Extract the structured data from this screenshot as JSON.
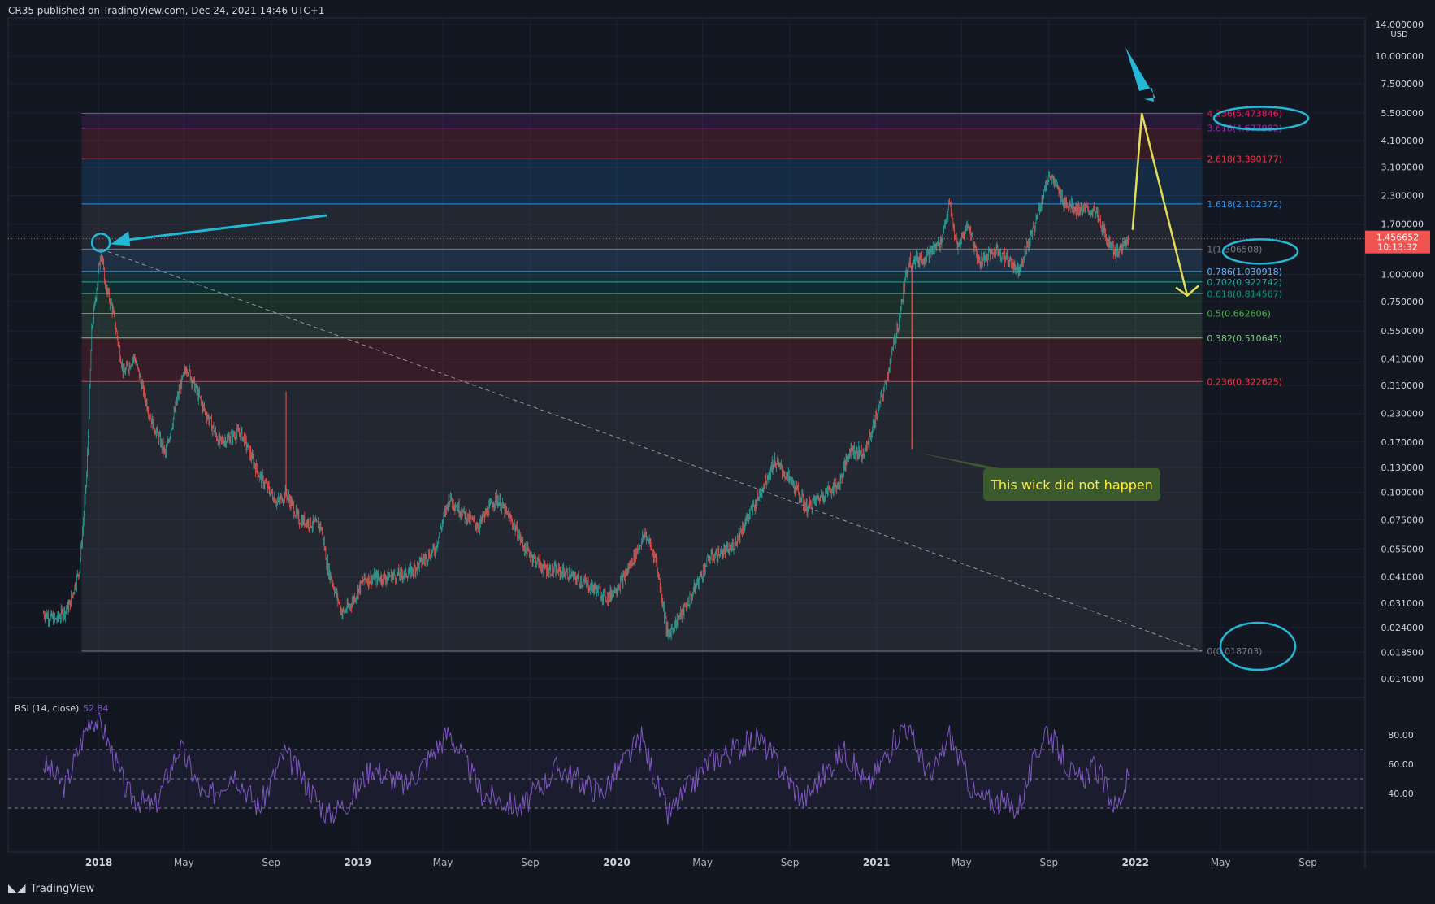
{
  "header": {
    "publisher_text": "CR35 published on TradingView.com, Dec 24, 2021 14:46 UTC+1"
  },
  "footer": {
    "logo_glyph": "𝟏𝟕",
    "brand": "TradingView"
  },
  "colors": {
    "background": "#131722",
    "grid": "#1e2230",
    "up": "#26a69a",
    "down": "#ef5350",
    "rsi": "#7e57c2",
    "cyan_annotation": "#22b8d6",
    "yellow_annotation": "#e4dc57",
    "callout_bg": "#3b5a2e",
    "callout_text": "#ffeb3b",
    "price_badge": "#f05350"
  },
  "chart_data": [
    {
      "type": "candlestick",
      "symbol_currency": "USD",
      "y_scale": "log",
      "ylim": [
        0.0125,
        15
      ],
      "x_axis_ticks": [
        "2018",
        "May",
        "Sep",
        "2019",
        "May",
        "Sep",
        "2020",
        "May",
        "Sep",
        "2021",
        "May",
        "Sep",
        "2022",
        "May",
        "Sep"
      ],
      "y_axis_ticks": [
        {
          "label": "14.000000",
          "value": 14
        },
        {
          "label": "10.000000",
          "value": 10
        },
        {
          "label": "7.500000",
          "value": 7.5
        },
        {
          "label": "5.500000",
          "value": 5.5
        },
        {
          "label": "4.100000",
          "value": 4.1
        },
        {
          "label": "3.100000",
          "value": 3.1
        },
        {
          "label": "2.300000",
          "value": 2.3
        },
        {
          "label": "1.700000",
          "value": 1.7
        },
        {
          "label": "1.000000",
          "value": 1.0
        },
        {
          "label": "0.750000",
          "value": 0.75
        },
        {
          "label": "0.550000",
          "value": 0.55
        },
        {
          "label": "0.410000",
          "value": 0.41
        },
        {
          "label": "0.310000",
          "value": 0.31
        },
        {
          "label": "0.230000",
          "value": 0.23
        },
        {
          "label": "0.170000",
          "value": 0.17
        },
        {
          "label": "0.130000",
          "value": 0.13
        },
        {
          "label": "0.100000",
          "value": 0.1
        },
        {
          "label": "0.075000",
          "value": 0.075
        },
        {
          "label": "0.055000",
          "value": 0.055
        },
        {
          "label": "0.041000",
          "value": 0.041
        },
        {
          "label": "0.031000",
          "value": 0.031
        },
        {
          "label": "0.024000",
          "value": 0.024
        },
        {
          "label": "0.018500",
          "value": 0.0185
        },
        {
          "label": "0.014000",
          "value": 0.014
        }
      ],
      "currency_label": "USD",
      "current_price": {
        "value": 1.456652,
        "label": "1.456652",
        "countdown": "10:13:32"
      },
      "price_path": [
        [
          "2017-10-15",
          0.028
        ],
        [
          "2017-11-01",
          0.026
        ],
        [
          "2017-11-20",
          0.03
        ],
        [
          "2017-12-05",
          0.045
        ],
        [
          "2017-12-15",
          0.12
        ],
        [
          "2017-12-22",
          0.55
        ],
        [
          "2018-01-04",
          1.3
        ],
        [
          "2018-01-10",
          0.9
        ],
        [
          "2018-01-20",
          0.7
        ],
        [
          "2018-02-05",
          0.35
        ],
        [
          "2018-02-20",
          0.42
        ],
        [
          "2018-03-15",
          0.22
        ],
        [
          "2018-04-05",
          0.15
        ],
        [
          "2018-04-25",
          0.3
        ],
        [
          "2018-05-05",
          0.38
        ],
        [
          "2018-05-25",
          0.26
        ],
        [
          "2018-06-20",
          0.17
        ],
        [
          "2018-07-20",
          0.19
        ],
        [
          "2018-08-15",
          0.12
        ],
        [
          "2018-09-10",
          0.09
        ],
        [
          "2018-09-22",
          0.1
        ],
        [
          "2018-10-10",
          0.075
        ],
        [
          "2018-11-10",
          0.07
        ],
        [
          "2018-11-20",
          0.045
        ],
        [
          "2018-12-10",
          0.028
        ],
        [
          "2018-12-20",
          0.03
        ],
        [
          "2019-01-10",
          0.04
        ],
        [
          "2019-02-10",
          0.041
        ],
        [
          "2019-03-15",
          0.043
        ],
        [
          "2019-04-20",
          0.055
        ],
        [
          "2019-05-10",
          0.095
        ],
        [
          "2019-05-30",
          0.08
        ],
        [
          "2019-06-20",
          0.07
        ],
        [
          "2019-07-15",
          0.095
        ],
        [
          "2019-08-10",
          0.07
        ],
        [
          "2019-08-25",
          0.055
        ],
        [
          "2019-09-20",
          0.045
        ],
        [
          "2019-10-20",
          0.043
        ],
        [
          "2019-11-20",
          0.038
        ],
        [
          "2019-12-20",
          0.033
        ],
        [
          "2020-01-10",
          0.04
        ],
        [
          "2020-02-10",
          0.065
        ],
        [
          "2020-02-25",
          0.05
        ],
        [
          "2020-03-13",
          0.022
        ],
        [
          "2020-04-10",
          0.031
        ],
        [
          "2020-05-10",
          0.05
        ],
        [
          "2020-06-10",
          0.055
        ],
        [
          "2020-07-15",
          0.09
        ],
        [
          "2020-08-10",
          0.14
        ],
        [
          "2020-09-05",
          0.11
        ],
        [
          "2020-09-25",
          0.085
        ],
        [
          "2020-10-20",
          0.1
        ],
        [
          "2020-11-10",
          0.11
        ],
        [
          "2020-11-25",
          0.16
        ],
        [
          "2020-12-15",
          0.15
        ],
        [
          "2021-01-05",
          0.25
        ],
        [
          "2021-01-15",
          0.33
        ],
        [
          "2021-02-01",
          0.6
        ],
        [
          "2021-02-15",
          1.15
        ],
        [
          "2021-03-10",
          1.2
        ],
        [
          "2021-04-01",
          1.4
        ],
        [
          "2021-04-14",
          2.1
        ],
        [
          "2021-04-25",
          1.3
        ],
        [
          "2021-05-10",
          1.7
        ],
        [
          "2021-05-25",
          1.15
        ],
        [
          "2021-06-20",
          1.3
        ],
        [
          "2021-07-20",
          1.05
        ],
        [
          "2021-08-10",
          1.6
        ],
        [
          "2021-08-25",
          2.4
        ],
        [
          "2021-09-02",
          2.9
        ],
        [
          "2021-09-20",
          2.2
        ],
        [
          "2021-10-10",
          2.0
        ],
        [
          "2021-11-05",
          1.95
        ],
        [
          "2021-11-20",
          1.5
        ],
        [
          "2021-12-05",
          1.25
        ],
        [
          "2021-12-24",
          1.456652
        ]
      ],
      "fibonacci": {
        "levels": [
          {
            "ratio": "4.236",
            "value": 5.473846,
            "label": "4.236(5.473846)",
            "color": "#e91e63"
          },
          {
            "ratio": "3.618",
            "value": 4.677982,
            "label": "3.618(4.677982)",
            "color": "#9c27b0"
          },
          {
            "ratio": "2.618",
            "value": 3.390177,
            "label": "2.618(3.390177)",
            "color": "#f23645"
          },
          {
            "ratio": "1.618",
            "value": 2.102372,
            "label": "1.618(2.102372)",
            "color": "#2196f3"
          },
          {
            "ratio": "1",
            "value": 1.306508,
            "label": "1(1.306508)",
            "color": "#787b86"
          },
          {
            "ratio": "0.786",
            "value": 1.030918,
            "label": "0.786(1.030918)",
            "color": "#64b5f6"
          },
          {
            "ratio": "0.702",
            "value": 0.922742,
            "label": "0.702(0.922742)",
            "color": "#26a69a"
          },
          {
            "ratio": "0.618",
            "value": 0.814567,
            "label": "0.618(0.814567)",
            "color": "#089981"
          },
          {
            "ratio": "0.5",
            "value": 0.662606,
            "label": "0.5(0.662606)",
            "color": "#4caf50"
          },
          {
            "ratio": "0.382",
            "value": 0.510645,
            "label": "0.382(0.510645)",
            "color": "#81c784"
          },
          {
            "ratio": "0.236",
            "value": 0.322625,
            "label": "0.236(0.322625)",
            "color": "#f23645"
          },
          {
            "ratio": "0",
            "value": 0.018703,
            "label": "0(0.018703)",
            "color": "#787b86"
          }
        ],
        "start_date": "2017-12-08",
        "end_date": "2022-04-05"
      },
      "trend_line": {
        "from": [
          "2018-01-04",
          1.306508
        ],
        "to": [
          "2022-04-05",
          0.018703
        ]
      },
      "annotations": [
        {
          "text": "This wick did not happen"
        }
      ],
      "projection": [
        [
          "2021-12-28",
          1.6
        ],
        [
          "2022-01-10",
          5.473846
        ],
        [
          "2022-03-15",
          0.8
        ]
      ]
    },
    {
      "type": "line",
      "title": "RSI (14, close)",
      "last_value": "52.84",
      "y_axis_ticks": [
        "80.00",
        "60.00",
        "40.00"
      ],
      "bands": [
        70,
        50,
        30
      ],
      "series": [
        {
          "values": [
            [
              "2017-10-15",
              60
            ],
            [
              "2017-11-15",
              45
            ],
            [
              "2017-12-20",
              92
            ],
            [
              "2018-01-04",
              88
            ],
            [
              "2018-02-10",
              40
            ],
            [
              "2018-03-20",
              30
            ],
            [
              "2018-04-25",
              72
            ],
            [
              "2018-06-01",
              35
            ],
            [
              "2018-07-10",
              55
            ],
            [
              "2018-08-15",
              30
            ],
            [
              "2018-09-20",
              68
            ],
            [
              "2018-11-20",
              25
            ],
            [
              "2018-12-20",
              35
            ],
            [
              "2019-01-20",
              58
            ],
            [
              "2019-03-10",
              45
            ],
            [
              "2019-05-10",
              82
            ],
            [
              "2019-06-25",
              40
            ],
            [
              "2019-08-20",
              30
            ],
            [
              "2019-10-10",
              58
            ],
            [
              "2019-12-10",
              40
            ],
            [
              "2020-02-05",
              78
            ],
            [
              "2020-03-13",
              25
            ],
            [
              "2020-05-10",
              62
            ],
            [
              "2020-07-20",
              78
            ],
            [
              "2020-09-20",
              35
            ],
            [
              "2020-11-15",
              70
            ],
            [
              "2020-12-20",
              45
            ],
            [
              "2021-02-10",
              88
            ],
            [
              "2021-03-20",
              50
            ],
            [
              "2021-04-14",
              80
            ],
            [
              "2021-05-20",
              38
            ],
            [
              "2021-07-20",
              30
            ],
            [
              "2021-08-28",
              85
            ],
            [
              "2021-10-10",
              48
            ],
            [
              "2021-11-05",
              58
            ],
            [
              "2021-12-05",
              30
            ],
            [
              "2021-12-24",
              52.84
            ]
          ]
        }
      ]
    }
  ]
}
